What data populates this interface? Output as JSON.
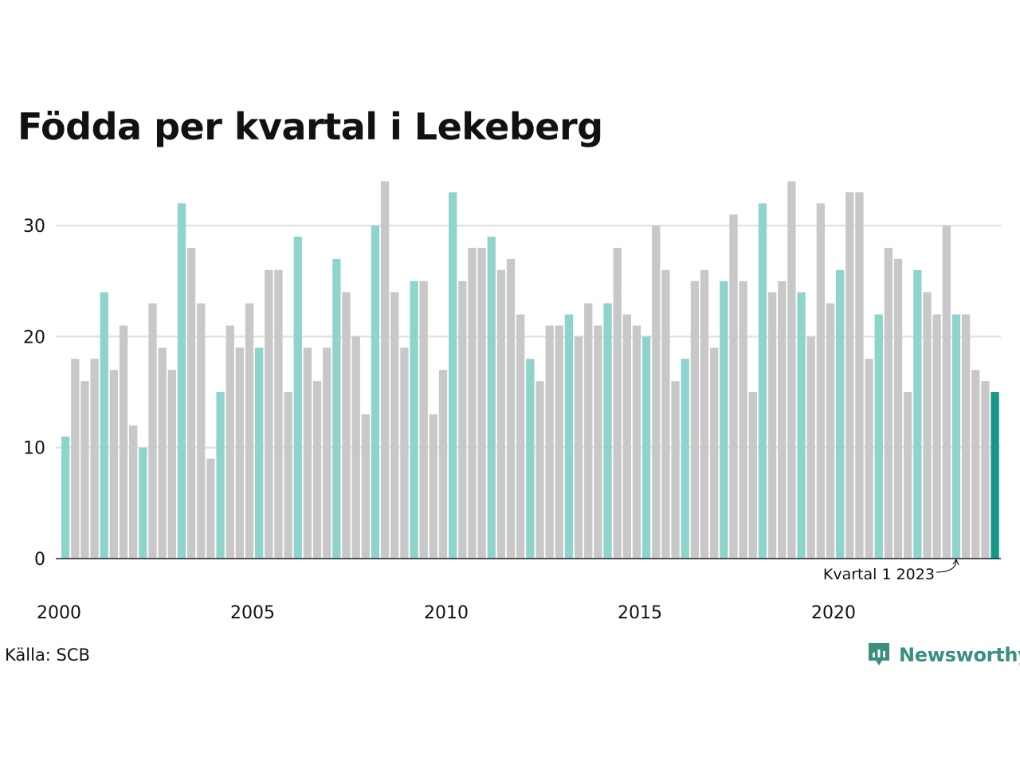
{
  "source": "Källa: SCB",
  "brand": "Newsworthy",
  "chart_data": {
    "type": "bar",
    "title": "Födda per kvartal i Lekeberg",
    "xlabel": "",
    "ylabel": "",
    "ylim": [
      0,
      34
    ],
    "y_ticks": [
      0,
      10,
      20,
      30
    ],
    "x_ticks": [
      2000,
      2005,
      2010,
      2015,
      2020
    ],
    "grid": true,
    "categories": [
      "2000 K1",
      "2000 K2",
      "2000 K3",
      "2000 K4",
      "2001 K1",
      "2001 K2",
      "2001 K3",
      "2001 K4",
      "2002 K1",
      "2002 K2",
      "2002 K3",
      "2002 K4",
      "2003 K1",
      "2003 K2",
      "2003 K3",
      "2003 K4",
      "2004 K1",
      "2004 K2",
      "2004 K3",
      "2004 K4",
      "2005 K1",
      "2005 K2",
      "2005 K3",
      "2005 K4",
      "2006 K1",
      "2006 K2",
      "2006 K3",
      "2006 K4",
      "2007 K1",
      "2007 K2",
      "2007 K3",
      "2007 K4",
      "2008 K1",
      "2008 K2",
      "2008 K3",
      "2008 K4",
      "2009 K1",
      "2009 K2",
      "2009 K3",
      "2009 K4",
      "2010 K1",
      "2010 K2",
      "2010 K3",
      "2010 K4",
      "2011 K1",
      "2011 K2",
      "2011 K3",
      "2011 K4",
      "2012 K1",
      "2012 K2",
      "2012 K3",
      "2012 K4",
      "2013 K1",
      "2013 K2",
      "2013 K3",
      "2013 K4",
      "2014 K1",
      "2014 K2",
      "2014 K3",
      "2014 K4",
      "2015 K1",
      "2015 K2",
      "2015 K3",
      "2015 K4",
      "2016 K1",
      "2016 K2",
      "2016 K3",
      "2016 K4",
      "2017 K1",
      "2017 K2",
      "2017 K3",
      "2017 K4",
      "2018 K1",
      "2018 K2",
      "2018 K3",
      "2018 K4",
      "2019 K1",
      "2019 K2",
      "2019 K3",
      "2019 K4",
      "2020 K1",
      "2020 K2",
      "2020 K3",
      "2020 K4",
      "2021 K1",
      "2021 K2",
      "2021 K3",
      "2021 K4",
      "2022 K1",
      "2022 K2",
      "2022 K3",
      "2022 K4",
      "2023 K1",
      "2023 K2",
      "2023 K3",
      "2023 K4",
      "2024 K1"
    ],
    "values": [
      11,
      18,
      16,
      18,
      24,
      17,
      21,
      12,
      10,
      23,
      19,
      17,
      32,
      28,
      23,
      9,
      15,
      21,
      19,
      23,
      19,
      26,
      26,
      15,
      29,
      19,
      16,
      19,
      27,
      24,
      20,
      13,
      30,
      34,
      24,
      19,
      25,
      25,
      13,
      17,
      33,
      25,
      28,
      28,
      29,
      26,
      27,
      22,
      18,
      16,
      21,
      21,
      22,
      20,
      23,
      21,
      23,
      28,
      22,
      21,
      20,
      30,
      26,
      16,
      18,
      25,
      26,
      19,
      25,
      31,
      25,
      15,
      32,
      24,
      25,
      34,
      24,
      20,
      32,
      23,
      26,
      33,
      33,
      18,
      22,
      28,
      27,
      15,
      26,
      24,
      22,
      30,
      22,
      22,
      17,
      16,
      15
    ],
    "colors": {
      "first_quarter": "#8ed4cc",
      "other_quarters": "#c8c8c8",
      "latest": "#17968a",
      "gridline": "#e3e3e3",
      "axis": "#222222"
    },
    "annotation": {
      "text": "Kvartal 1 2023",
      "target_category": "2023 K1"
    }
  }
}
